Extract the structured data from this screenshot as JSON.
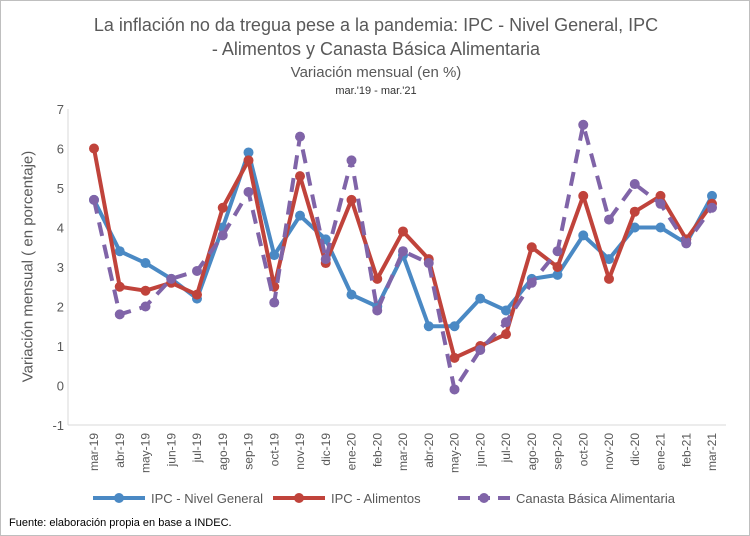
{
  "chart_data": {
    "type": "line",
    "title": "La inflación no da tregua pese a la pandemia: IPC - Nivel General, IPC",
    "title_line2": "- Alimentos y Canasta Básica Alimentaria",
    "subtitle": "Variación mensual (en %)",
    "subtitle2": "mar.'19 - mar.'21",
    "ylabel": "Variación mensual ( en porcentaje)",
    "ylim": [
      -1,
      7
    ],
    "yticks": [
      "-1",
      "0",
      "1",
      "2",
      "3",
      "4",
      "5",
      "6",
      "7"
    ],
    "categories": [
      "mar-19",
      "abr-19",
      "may-19",
      "jun-19",
      "jul-19",
      "ago-19",
      "sep-19",
      "oct-19",
      "nov-19",
      "dic-19",
      "ene-20",
      "feb-20",
      "mar-20",
      "abr-20",
      "may-20",
      "jun-20",
      "jul-20",
      "ago-20",
      "sep-20",
      "oct-20",
      "nov-20",
      "dic-20",
      "ene-21",
      "feb-21",
      "mar-21"
    ],
    "grid": false,
    "legend_position": "bottom",
    "series": [
      {
        "name": "IPC - Nivel General",
        "color": "#4a89c4",
        "dashed": false,
        "values": [
          4.7,
          3.4,
          3.1,
          2.7,
          2.2,
          4.0,
          5.9,
          3.3,
          4.3,
          3.7,
          2.3,
          2.0,
          3.3,
          1.5,
          1.5,
          2.2,
          1.9,
          2.7,
          2.8,
          3.8,
          3.2,
          4.0,
          4.0,
          3.6,
          4.8
        ]
      },
      {
        "name": "IPC - Alimentos",
        "color": "#c0433b",
        "dashed": false,
        "values": [
          6.0,
          2.5,
          2.4,
          2.6,
          2.3,
          4.5,
          5.7,
          2.5,
          5.3,
          3.1,
          4.7,
          2.7,
          3.9,
          3.2,
          0.7,
          1.0,
          1.3,
          3.5,
          3.0,
          4.8,
          2.7,
          4.4,
          4.8,
          3.7,
          4.6
        ]
      },
      {
        "name": "Canasta Básica Alimentaria",
        "color": "#8064a8",
        "dashed": true,
        "values": [
          4.7,
          1.8,
          2.0,
          2.7,
          2.9,
          3.8,
          4.9,
          2.1,
          6.3,
          3.2,
          5.7,
          1.9,
          3.4,
          3.1,
          -0.1,
          0.9,
          1.6,
          2.6,
          3.4,
          6.6,
          4.2,
          5.1,
          4.6,
          3.6,
          4.5
        ]
      }
    ]
  },
  "source": "Fuente: elaboración propia en base a INDEC."
}
